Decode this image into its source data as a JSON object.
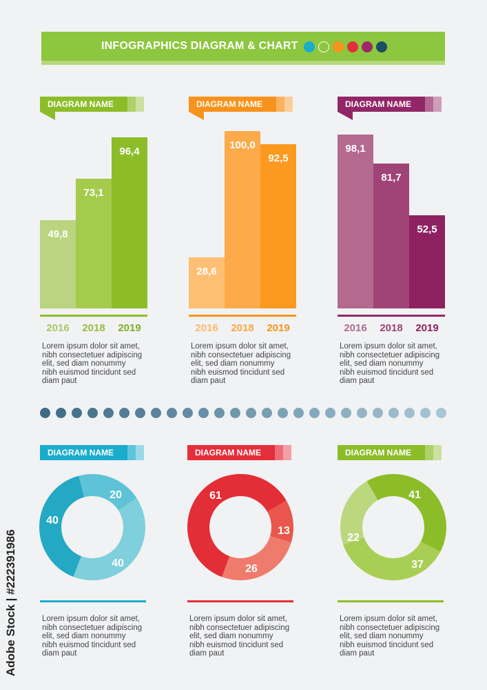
{
  "header": {
    "title": "INFOGRAPHICS DIAGRAM & CHART",
    "dots": [
      "#1aaccc",
      "outline",
      "#f7941d",
      "#e52e3b",
      "#9c2867",
      "#1b4f63"
    ]
  },
  "bar_charts": [
    {
      "tag": "DIAGRAM NAME",
      "colors": [
        "#bad47f",
        "#a5cb4d",
        "#8cbd29"
      ],
      "tag_color": "#8cbd29",
      "accent": "#8cbd29",
      "year_colors": [
        "#a8c86a",
        "#96bf3d",
        "#7fae24"
      ],
      "desc": [
        "Lorem ipsum dolor sit amet,",
        "nibh consectetuer adipiscing",
        "elit, sed diam nonummy",
        "nibh euismod tincidunt  sed",
        "diam paut"
      ]
    },
    {
      "tag": "DIAGRAM NAME",
      "colors": [
        "#fdbf73",
        "#fcaa4a",
        "#fb9a1f"
      ],
      "tag_color": "#f7931c",
      "accent": "#f7931c",
      "year_colors": [
        "#fbb96a",
        "#f9a63f",
        "#f7931c"
      ],
      "desc": [
        "Lorem ipsum dolor sit amet,",
        "nibh consectetuer adipiscing",
        "elit, sed diam nonummy",
        "nibh euismod tincidunt  sed",
        "diam paut"
      ]
    },
    {
      "tag": "DIAGRAM NAME",
      "colors": [
        "#b4698f",
        "#a04478",
        "#8e2261"
      ],
      "tag_color": "#922767",
      "accent": "#922767",
      "year_colors": [
        "#b06a92",
        "#9a427a",
        "#8a2060"
      ],
      "desc": [
        "Lorem ipsum dolor sit amet,",
        "nibh consectetuer adipiscing",
        "elit, sed diam nonummy",
        "nibh euismod tincidunt  sed",
        "diam paut"
      ]
    }
  ],
  "donut_charts": [
    {
      "tag": "DIAGRAM NAME",
      "tag_color": "#1aaccc",
      "accent": "#1aaccc",
      "colors": [
        "#5ec3d6",
        "#7fcfdc",
        "#23a9c4"
      ],
      "desc": [
        "Lorem ipsum dolor sit amet,",
        "nibh consectetuer adipiscing",
        "elit, sed diam nonummy",
        "nibh euismod tincidunt  sed",
        "diam paut"
      ]
    },
    {
      "tag": "DIAGRAM NAME",
      "tag_color": "#e52e3b",
      "accent": "#e52e3b",
      "colors": [
        "#e9564b",
        "#ef7b6c",
        "#e32d37"
      ],
      "desc": [
        "Lorem ipsum dolor sit amet,",
        "nibh consectetuer adipiscing",
        "elit, sed diam nonummy",
        "nibh euismod tincidunt  sed",
        "diam paut"
      ]
    },
    {
      "tag": "DIAGRAM NAME",
      "tag_color": "#8cbd29",
      "accent": "#8cbd29",
      "colors": [
        "#8cbd29",
        "#a8ce55",
        "#bcd87f"
      ],
      "desc": [
        "Lorem ipsum dolor sit amet,",
        "nibh consectetuer adipiscing",
        "elit, sed diam nonummy",
        "nibh euismod tincidunt  sed",
        "diam paut"
      ]
    }
  ],
  "separator": {
    "colors": [
      "#3d6b86",
      "#a7c6d6"
    ]
  },
  "watermark": "Adobe Stock | #222391986",
  "chart_data": [
    {
      "type": "bar",
      "categories": [
        "2016",
        "2018",
        "2019"
      ],
      "values": [
        49.8,
        73.1,
        96.4
      ],
      "value_labels": [
        "49,8",
        "73,1",
        "96,4"
      ],
      "ylim": [
        0,
        105
      ]
    },
    {
      "type": "bar",
      "categories": [
        "2016",
        "2018",
        "2019"
      ],
      "values": [
        28.6,
        100.0,
        92.5
      ],
      "value_labels": [
        "28,6",
        "100,0",
        "92,5"
      ],
      "ylim": [
        0,
        105
      ]
    },
    {
      "type": "bar",
      "categories": [
        "2016",
        "2018",
        "2019"
      ],
      "values": [
        98.1,
        81.7,
        52.5
      ],
      "value_labels": [
        "98,1",
        "81,7",
        "52,5"
      ],
      "ylim": [
        0,
        105
      ]
    },
    {
      "type": "pie",
      "values": [
        20,
        40,
        40
      ],
      "labels": [
        "20",
        "40",
        "40"
      ]
    },
    {
      "type": "pie",
      "values": [
        13,
        26,
        61
      ],
      "labels": [
        "13",
        "26",
        "61"
      ]
    },
    {
      "type": "pie",
      "values": [
        41,
        37,
        22
      ],
      "labels": [
        "41",
        "37",
        "22"
      ]
    }
  ]
}
